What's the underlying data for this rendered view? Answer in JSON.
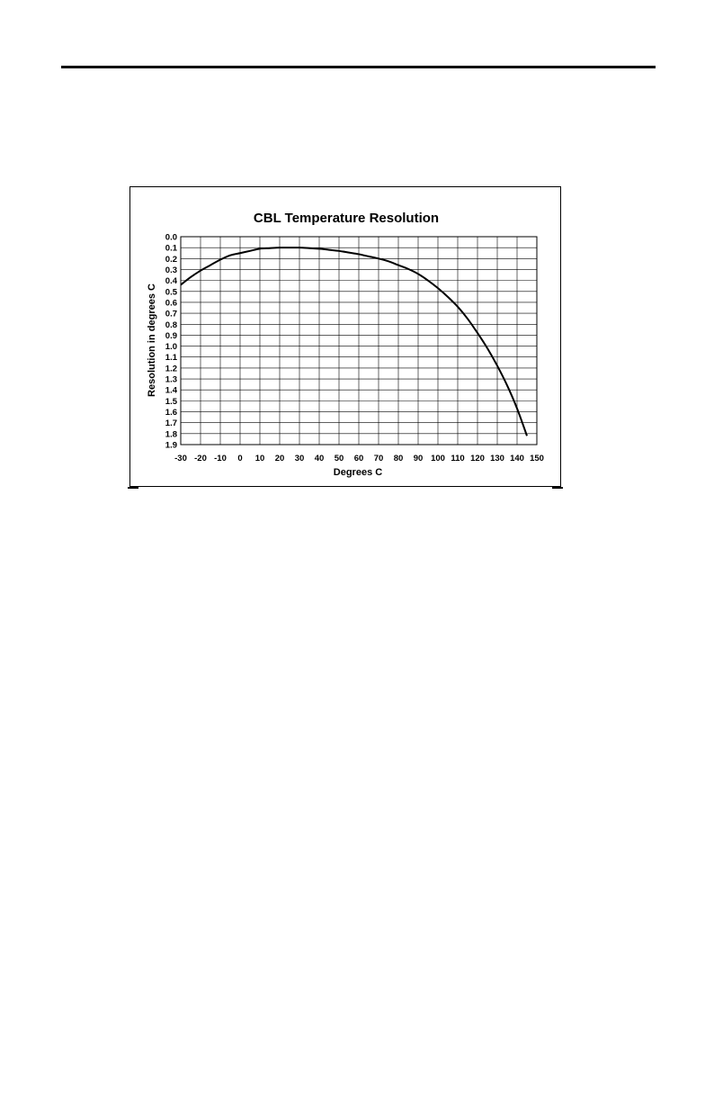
{
  "chart_data": {
    "type": "line",
    "title": "CBL Temperature Resolution",
    "xlabel": "Degrees C",
    "ylabel": "Resolution in degrees C",
    "xlim": [
      -30,
      150
    ],
    "ylim": [
      0.0,
      1.9
    ],
    "y_axis_inverted": true,
    "grid": true,
    "x_ticks": [
      "-30",
      "-20",
      "-10",
      "0",
      "10",
      "20",
      "30",
      "40",
      "50",
      "60",
      "70",
      "80",
      "90",
      "100",
      "110",
      "120",
      "130",
      "140",
      "150"
    ],
    "y_ticks": [
      "0.0",
      "0.1",
      "0.2",
      "0.3",
      "0.4",
      "0.5",
      "0.6",
      "0.7",
      "0.8",
      "0.9",
      "1.0",
      "1.1",
      "1.2",
      "1.3",
      "1.4",
      "1.5",
      "1.6",
      "1.7",
      "1.8",
      "1.9"
    ],
    "series": [
      {
        "color": "#000000",
        "x": [
          -30,
          -25,
          -20,
          -15,
          -10,
          -5,
          0,
          5,
          10,
          15,
          20,
          25,
          30,
          35,
          40,
          45,
          50,
          55,
          60,
          65,
          70,
          75,
          80,
          85,
          90,
          95,
          100,
          105,
          110,
          115,
          120,
          125,
          130,
          135,
          140,
          145
        ],
        "y": [
          0.44,
          0.37,
          0.31,
          0.26,
          0.21,
          0.17,
          0.15,
          0.13,
          0.11,
          0.105,
          0.1,
          0.1,
          0.1,
          0.105,
          0.11,
          0.12,
          0.13,
          0.145,
          0.16,
          0.18,
          0.2,
          0.225,
          0.26,
          0.295,
          0.34,
          0.4,
          0.47,
          0.55,
          0.64,
          0.75,
          0.88,
          1.02,
          1.18,
          1.36,
          1.57,
          1.82
        ]
      }
    ]
  }
}
